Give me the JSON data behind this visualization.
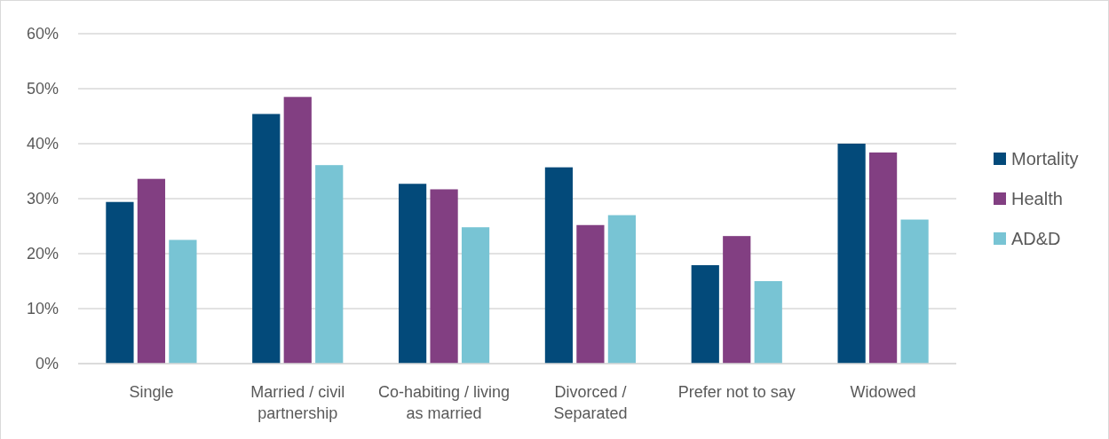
{
  "chart_data": {
    "type": "bar",
    "categories": [
      "Single",
      "Married / civil partnership",
      "Co-habiting / living as married",
      "Divorced / Separated",
      "Prefer not to say",
      "Widowed"
    ],
    "series": [
      {
        "name": "Mortality",
        "color": "#034a7a",
        "values": [
          29.4,
          45.4,
          32.7,
          35.7,
          17.9,
          40.0
        ]
      },
      {
        "name": "Health",
        "color": "#823f82",
        "values": [
          33.6,
          48.5,
          31.7,
          25.2,
          23.2,
          38.4
        ]
      },
      {
        "name": "AD&D",
        "color": "#78c4d4",
        "values": [
          22.5,
          36.1,
          24.8,
          27.0,
          15.0,
          26.2
        ]
      }
    ],
    "ylim": [
      0,
      60
    ],
    "yticks": [
      {
        "value": 0,
        "label": "0%"
      },
      {
        "value": 10,
        "label": "10%"
      },
      {
        "value": 20,
        "label": "20%"
      },
      {
        "value": 30,
        "label": "30%"
      },
      {
        "value": 40,
        "label": "40%"
      },
      {
        "value": 50,
        "label": "50%"
      },
      {
        "value": 60,
        "label": "60%"
      }
    ],
    "grid": "y",
    "legend": "right"
  }
}
